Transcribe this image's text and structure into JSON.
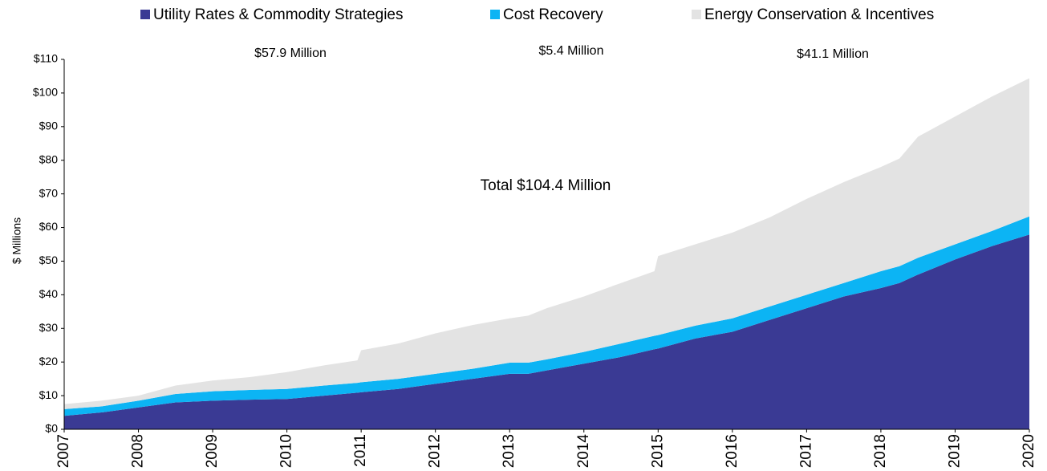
{
  "chart_data": {
    "type": "stacked_area",
    "y_label": "$ Millions",
    "annotations": [
      "$57.9 Million",
      "$5.4 Million",
      "$41.1 Million",
      "Total $104.4 Million"
    ],
    "x": [
      2007,
      2007.5,
      2008,
      2008.5,
      2009,
      2009.5,
      2010,
      2010.5,
      2010.95,
      2011,
      2011.5,
      2012,
      2012.5,
      2013,
      2013.25,
      2013.5,
      2014,
      2014.5,
      2014.95,
      2015,
      2015.5,
      2016,
      2016.5,
      2017,
      2017.5,
      2018,
      2018.25,
      2018.5,
      2019,
      2019.5,
      2020
    ],
    "series": [
      {
        "name": "Utility Rates & Commodity Strategies",
        "color": "#3a3a94",
        "values": [
          4,
          5,
          6.5,
          8,
          8.5,
          8.8,
          9,
          10,
          10.9,
          11,
          12,
          13.5,
          15,
          16.5,
          16.5,
          17.5,
          19.5,
          21.5,
          23.8,
          24,
          27,
          29,
          32.5,
          36,
          39.5,
          42,
          43.5,
          46,
          50.5,
          54.5,
          57.9
        ]
      },
      {
        "name": "Cost Recovery",
        "color": "#0cb4f4",
        "values": [
          2,
          1.8,
          2,
          2.5,
          2.8,
          2.9,
          3,
          3,
          2.9,
          3,
          3,
          3,
          3,
          3.3,
          3.3,
          3.3,
          3.5,
          4,
          4,
          4,
          3.8,
          4,
          4,
          4,
          4,
          5,
          5,
          5,
          4.5,
          4.5,
          5.4
        ]
      },
      {
        "name": "Energy Conservation & Incentives",
        "color": "#e3e3e3",
        "values": [
          1.5,
          1.7,
          1.5,
          2.5,
          3.2,
          3.8,
          5,
          6,
          6.7,
          9.5,
          10.5,
          12,
          13,
          13.2,
          14,
          15.2,
          16.5,
          18,
          19.2,
          23.5,
          24.2,
          25.5,
          26.5,
          28.5,
          30,
          31,
          32,
          36,
          38,
          40,
          41.1
        ]
      }
    ],
    "xlim": [
      2007,
      2020
    ],
    "xticks": [
      2007,
      2008,
      2009,
      2010,
      2011,
      2012,
      2013,
      2014,
      2015,
      2016,
      2017,
      2018,
      2019,
      2020
    ],
    "ylim": [
      0,
      110
    ],
    "yticks": [
      {
        "value": 0,
        "label": "$0"
      },
      {
        "value": 10,
        "label": "$10"
      },
      {
        "value": 20,
        "label": "$20"
      },
      {
        "value": 30,
        "label": "$30"
      },
      {
        "value": 40,
        "label": "$40"
      },
      {
        "value": 50,
        "label": "$50"
      },
      {
        "value": 60,
        "label": "$60"
      },
      {
        "value": 70,
        "label": "$70"
      },
      {
        "value": 80,
        "label": "$80"
      },
      {
        "value": 90,
        "label": "$90"
      },
      {
        "value": 100,
        "label": "$100"
      },
      {
        "value": 110,
        "label": "$110"
      }
    ],
    "legend": "top",
    "grid": false
  }
}
